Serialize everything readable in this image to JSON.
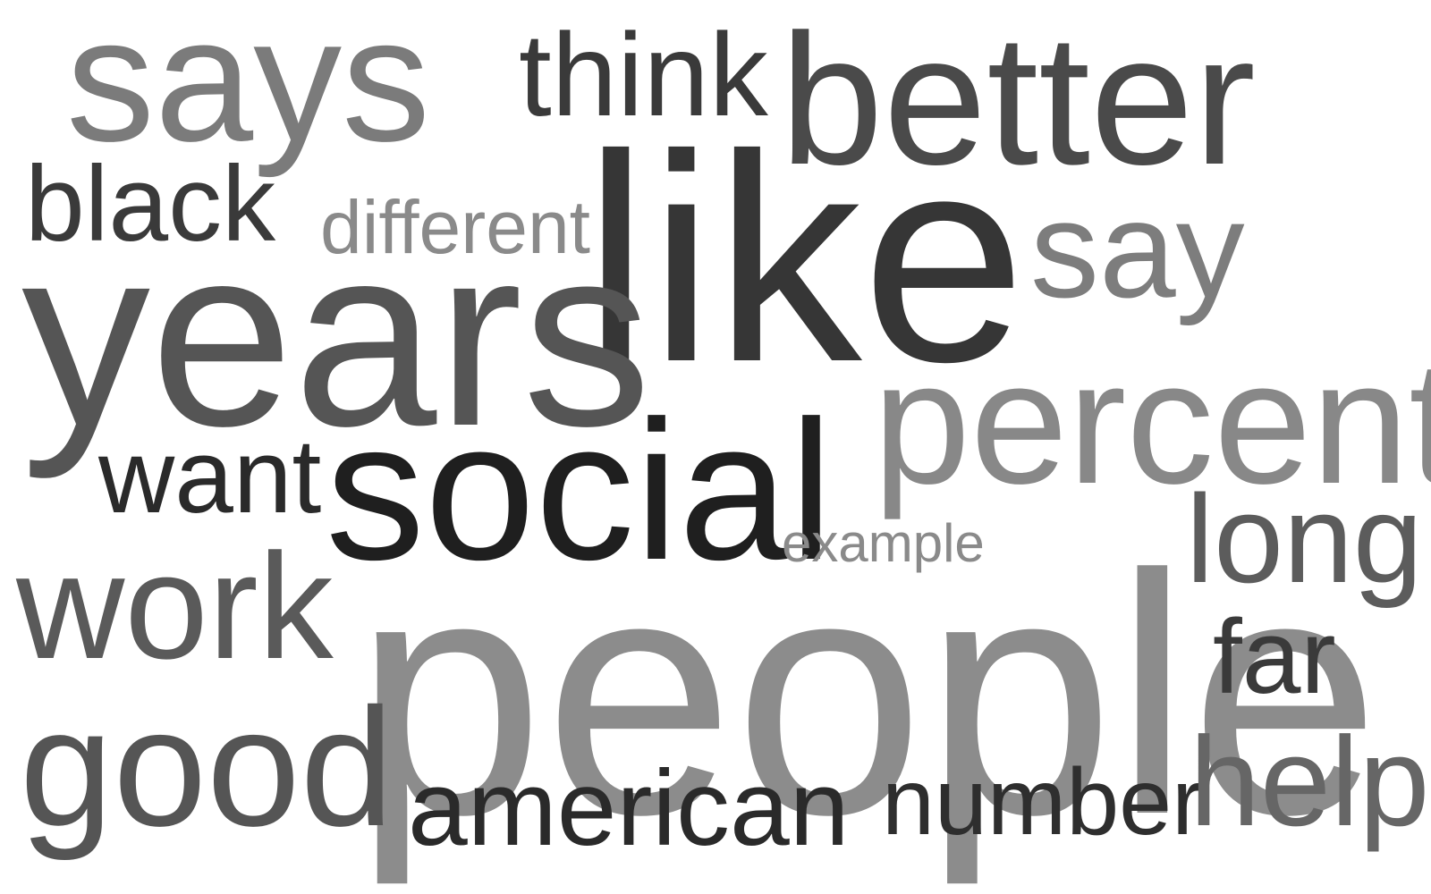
{
  "word_cloud": {
    "words": [
      {
        "text": "says",
        "color": "#7b7b7b"
      },
      {
        "text": "think",
        "color": "#3a3a3a"
      },
      {
        "text": "better",
        "color": "#4a4a4a"
      },
      {
        "text": "black",
        "color": "#3a3a3a"
      },
      {
        "text": "different",
        "color": "#8a8a8a"
      },
      {
        "text": "like",
        "color": "#363636"
      },
      {
        "text": "say",
        "color": "#7d7d7d"
      },
      {
        "text": "years",
        "color": "#555555"
      },
      {
        "text": "percent",
        "color": "#888888"
      },
      {
        "text": "want",
        "color": "#2a2a2a"
      },
      {
        "text": "social",
        "color": "#1f1f1f"
      },
      {
        "text": "long",
        "color": "#5c5c5c"
      },
      {
        "text": "example",
        "color": "#8a8a8a"
      },
      {
        "text": "work",
        "color": "#5a5a5a"
      },
      {
        "text": "people",
        "color": "#8c8c8c"
      },
      {
        "text": "far",
        "color": "#3a3a3a"
      },
      {
        "text": "good",
        "color": "#555555"
      },
      {
        "text": "american",
        "color": "#2a2a2a"
      },
      {
        "text": "number",
        "color": "#2e2e2e"
      },
      {
        "text": "help",
        "color": "#666666"
      }
    ]
  }
}
